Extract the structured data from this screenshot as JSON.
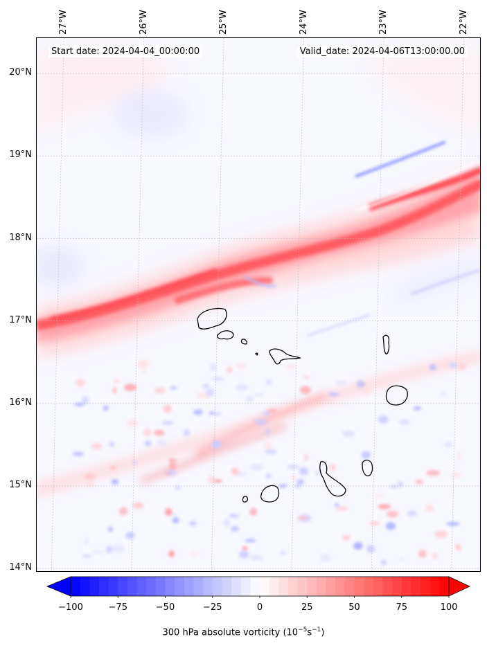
{
  "map": {
    "start_date": "Start date: 2024-04-04_00:00:00",
    "valid_date": "Valid_date: 2024-04-06T13:00:00.00",
    "lon_labels": [
      "27°W",
      "26°W",
      "25°W",
      "24°W",
      "23°W",
      "22°W"
    ],
    "lat_labels": [
      "20°N",
      "19°N",
      "18°N",
      "17°N",
      "16°N",
      "15°N",
      "14°N"
    ],
    "extent": {
      "lon_min": -27.34,
      "lon_max": -21.78,
      "lat_min": 13.95,
      "lat_max": 20.43
    },
    "islands": [
      "Santo Antão",
      "São Vicente",
      "Santa Luzia",
      "São Nicolau",
      "Sal",
      "Boa Vista",
      "Maio",
      "Santiago",
      "Fogo",
      "Brava"
    ]
  },
  "colorbar": {
    "label": "300 hPa absolute vorticity (10",
    "label_exp": "−5",
    "label_mid": "s",
    "label_exp2": "−1",
    "label_end": ")",
    "ticks": [
      "−100",
      "−75",
      "−50",
      "−25",
      "0",
      "25",
      "50",
      "75",
      "100"
    ],
    "min": -100,
    "max": 100,
    "colors": {
      "neg": "#0000ff",
      "mid": "#ffffff",
      "pos": "#ff0000"
    }
  }
}
